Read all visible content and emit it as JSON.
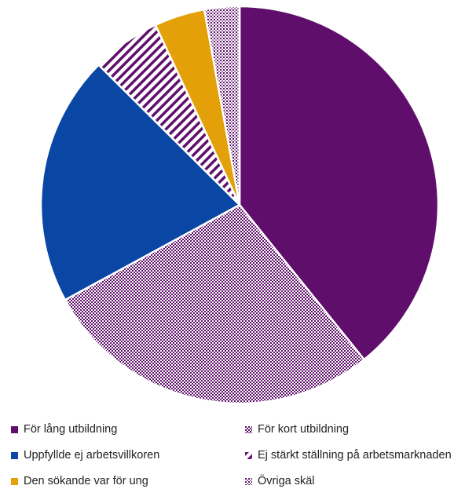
{
  "chart_data": {
    "type": "pie",
    "title": "",
    "categories": [
      "För lång utbildning",
      "För kort utbildning",
      "Uppfyllde ej arbetsvillkoren",
      "Ej stärkt ställning på arbetsmarknaden",
      "Den sökande var för ung",
      "Övriga skäl"
    ],
    "values": [
      40.0,
      28.4,
      20.8,
      5.7,
      4.2,
      2.9
    ],
    "unit": "%",
    "legend_position": "bottom",
    "slices": [
      {
        "label": "För lång utbildning",
        "value": 40.0,
        "color": "#5f0f6b",
        "pattern": "solid"
      },
      {
        "label": "För kort utbildning",
        "value": 28.4,
        "color": "#5f0f6b",
        "pattern": "checker"
      },
      {
        "label": "Uppfyllde ej arbetsvillkoren",
        "value": 20.8,
        "color": "#0a47a5",
        "pattern": "solid"
      },
      {
        "label": "Ej stärkt ställning på arbetsmarknaden",
        "value": 5.7,
        "color": "#5f0f6b",
        "pattern": "diagonal"
      },
      {
        "label": "Den sökande var för ung",
        "value": 4.2,
        "color": "#e3a008",
        "pattern": "solid"
      },
      {
        "label": "Övriga skäl",
        "value": 2.9,
        "color": "#5f0f6b",
        "pattern": "dots"
      }
    ]
  },
  "legend": {
    "items": [
      {
        "label": "För lång utbildning"
      },
      {
        "label": "För kort utbildning"
      },
      {
        "label": "Uppfyllde ej arbetsvillkoren"
      },
      {
        "label": "Ej stärkt ställning på arbetsmarknaden"
      },
      {
        "label": "Den sökande var för ung"
      },
      {
        "label": "Övriga skäl"
      }
    ]
  }
}
